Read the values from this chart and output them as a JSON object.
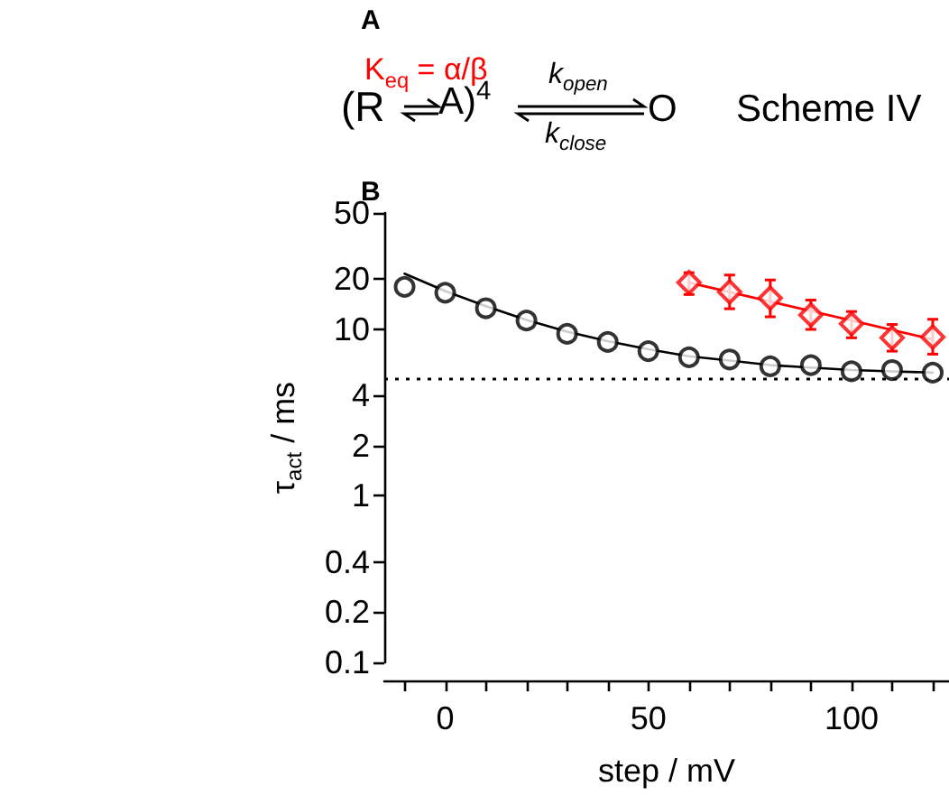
{
  "chart_data": {
    "type": "scatter",
    "xlabel": "step / mV",
    "ylabel": "τ$_{act}$ / ms",
    "log": "y",
    "xlim": [
      -15,
      124
    ],
    "ylim": [
      0.1,
      50
    ],
    "xticks": [
      {
        "value": -10,
        "label": null
      },
      0,
      {
        "value": 10,
        "label": null
      },
      {
        "value": 20,
        "label": null
      },
      {
        "value": 30,
        "label": null
      },
      {
        "value": 40,
        "label": null
      },
      50,
      {
        "value": 60,
        "label": null
      },
      {
        "value": 70,
        "label": null
      },
      {
        "value": 80,
        "label": null
      },
      {
        "value": 90,
        "label": null
      },
      100,
      {
        "value": 110,
        "label": null
      },
      {
        "value": 120,
        "label": null
      }
    ],
    "yticks": [
      0.1,
      0.2,
      0.4,
      1,
      2,
      4,
      10,
      20,
      50
    ],
    "grid": false,
    "series": [
      {
        "marker": "circle",
        "color": "#000000",
        "x": [
          -10,
          0,
          10,
          20,
          30,
          40,
          50,
          60,
          70,
          80,
          90,
          100,
          110,
          120
        ],
        "values": [
          18,
          16.6,
          13.4,
          11.3,
          9.4,
          8.4,
          7.4,
          6.8,
          6.6,
          6.0,
          6.1,
          5.6,
          5.7,
          5.5
        ]
      },
      {
        "type": "line",
        "marker": "none",
        "color": "#000000",
        "x": [
          -10,
          0,
          10,
          20,
          30,
          40,
          50,
          60,
          70,
          80,
          90,
          100,
          110,
          120
        ],
        "values": [
          21.6,
          17,
          13.8,
          11.4,
          9.7,
          8.5,
          7.6,
          6.9,
          6.5,
          6.1,
          5.9,
          5.7,
          5.6,
          5.5
        ]
      },
      {
        "marker": "diamond",
        "color": "#ff0000",
        "x": [
          60,
          70,
          80,
          90,
          100,
          110,
          120
        ],
        "values": [
          19.1,
          16.8,
          15.4,
          12.2,
          10.8,
          8.9,
          9.0
        ],
        "errors": [
          [
            16.2,
            21.9
          ],
          [
            13.3,
            21.2
          ],
          [
            11.9,
            19.8
          ],
          [
            10,
            15
          ],
          [
            8.9,
            12.8
          ],
          [
            7.4,
            10.7
          ],
          [
            7.1,
            11.5
          ]
        ]
      },
      {
        "type": "line",
        "marker": "none",
        "color": "#ff0000",
        "x": [
          60,
          120
        ],
        "values": [
          19.1,
          8.7
        ]
      }
    ],
    "ref_lines": [
      {
        "axis": "y",
        "value": 5.1,
        "color": "#000000",
        "line_style": "dotted"
      }
    ],
    "annotations": [
      "A",
      "B",
      "(R",
      "K$_{eq}$ = α/β",
      "A)$^{4}$",
      "k$_{open}$",
      "k$_{close}$",
      "O",
      "Scheme IV"
    ]
  }
}
